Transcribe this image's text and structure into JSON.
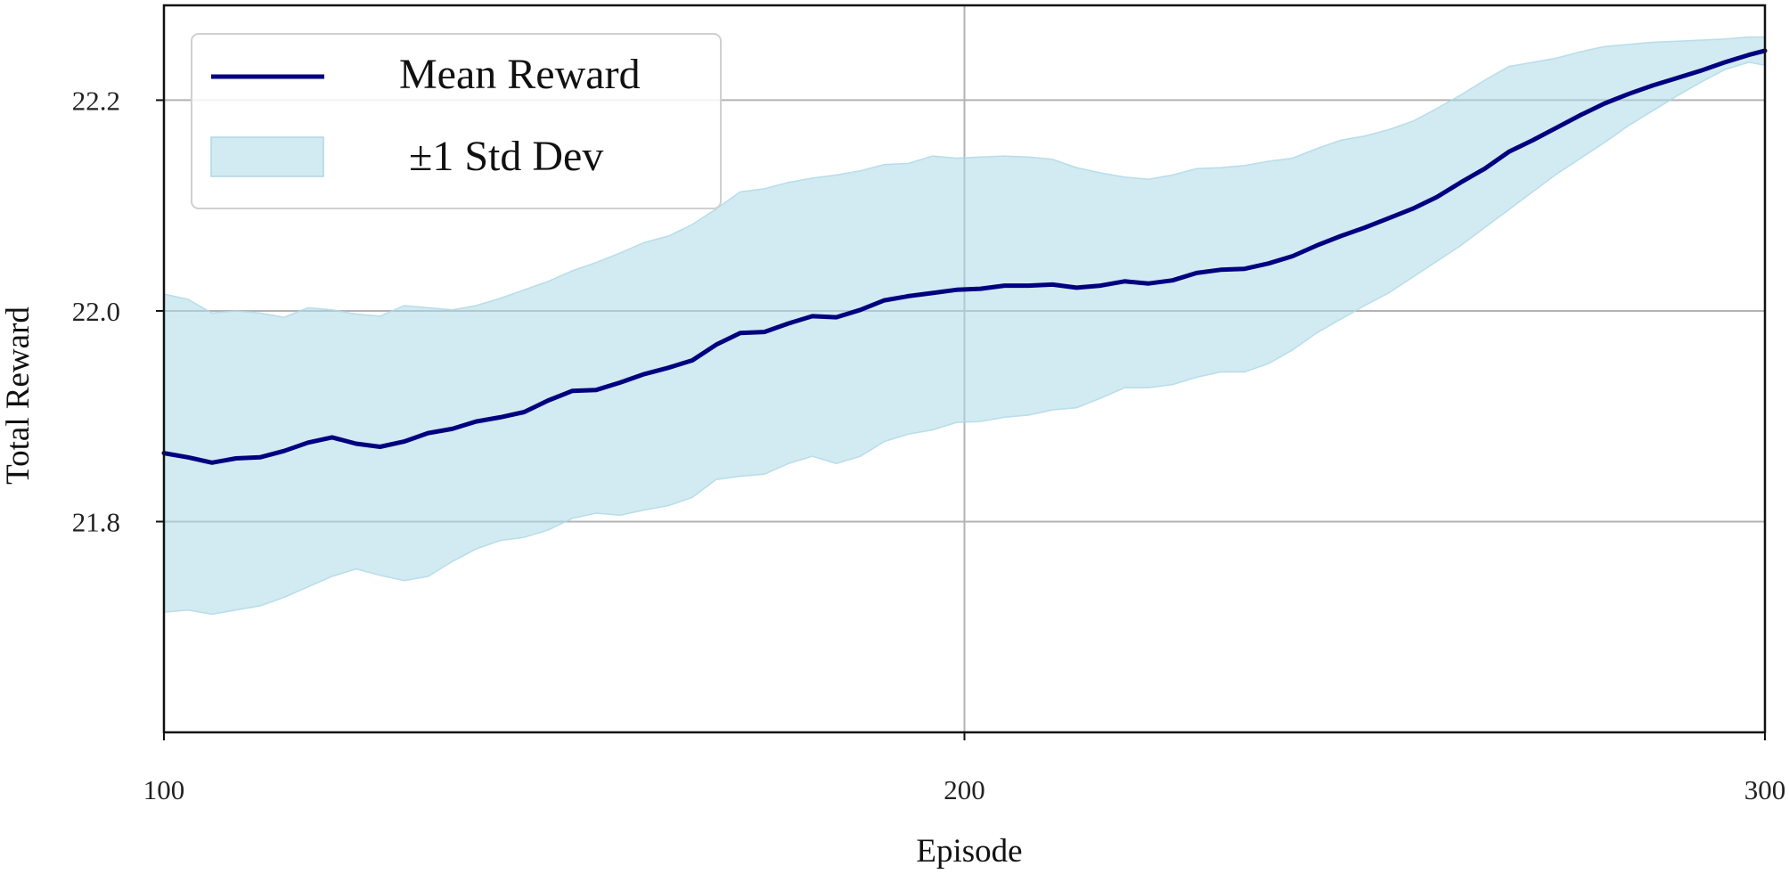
{
  "chart_data": {
    "type": "line",
    "title": "",
    "xlabel": "Episode",
    "ylabel": "Total Reward",
    "xlim": [
      100,
      300
    ],
    "ylim": [
      21.6,
      22.29
    ],
    "xticks": [
      100,
      200,
      300
    ],
    "xtick_labels": [
      "100",
      "200",
      "300"
    ],
    "yticks": [
      21.8,
      22.0,
      22.2
    ],
    "ytick_labels": [
      "21.8",
      "22.0",
      "22.2"
    ],
    "grid": true,
    "legend_position": "top-left",
    "colors": {
      "line": "#000080",
      "band": "#add8e6"
    },
    "legend": [
      {
        "label": "Mean Reward",
        "kind": "line"
      },
      {
        "label": "±1 Std Dev",
        "kind": "band"
      }
    ],
    "series": [
      {
        "name": "Mean Reward",
        "x": [
          100,
          103,
          106,
          109,
          112,
          115,
          118,
          121,
          124,
          127,
          130,
          133,
          136,
          139,
          142,
          145,
          148,
          151,
          154,
          157,
          160,
          163,
          166,
          169,
          172,
          175,
          178,
          181,
          184,
          187,
          190,
          193,
          196,
          199,
          202,
          205,
          208,
          211,
          214,
          217,
          220,
          223,
          226,
          229,
          232,
          235,
          238,
          241,
          244,
          247,
          250,
          253,
          256,
          259,
          262,
          265,
          268,
          271,
          274,
          277,
          280,
          283,
          286,
          289,
          292,
          295,
          298,
          300
        ],
        "values": [
          21.865,
          21.861,
          21.856,
          21.86,
          21.861,
          21.867,
          21.875,
          21.88,
          21.874,
          21.871,
          21.876,
          21.884,
          21.888,
          21.895,
          21.899,
          21.904,
          21.915,
          21.924,
          21.925,
          21.932,
          21.94,
          21.946,
          21.953,
          21.968,
          21.979,
          21.98,
          21.988,
          21.995,
          21.994,
          22.001,
          22.01,
          22.014,
          22.017,
          22.02,
          22.021,
          22.024,
          22.024,
          22.025,
          22.022,
          22.024,
          22.028,
          22.026,
          22.029,
          22.036,
          22.039,
          22.04,
          22.045,
          22.052,
          22.062,
          22.071,
          22.079,
          22.088,
          22.097,
          22.108,
          22.122,
          22.135,
          22.151,
          22.162,
          22.174,
          22.186,
          22.197,
          22.206,
          22.214,
          22.221,
          22.228,
          22.236,
          22.243,
          22.247
        ]
      }
    ],
    "band": {
      "name": "±1 Std Dev",
      "x": [
        100,
        103,
        106,
        109,
        112,
        115,
        118,
        121,
        124,
        127,
        130,
        133,
        136,
        139,
        142,
        145,
        148,
        151,
        154,
        157,
        160,
        163,
        166,
        169,
        172,
        175,
        178,
        181,
        184,
        187,
        190,
        193,
        196,
        199,
        202,
        205,
        208,
        211,
        214,
        217,
        220,
        223,
        226,
        229,
        232,
        235,
        238,
        241,
        244,
        247,
        250,
        253,
        256,
        259,
        262,
        265,
        268,
        271,
        274,
        277,
        280,
        283,
        286,
        289,
        292,
        295,
        298,
        300
      ],
      "upper": [
        22.016,
        22.011,
        21.998,
        22.0,
        21.998,
        21.994,
        22.003,
        22.001,
        21.997,
        21.995,
        22.005,
        22.003,
        22.001,
        22.005,
        22.012,
        22.02,
        22.028,
        22.038,
        22.046,
        22.055,
        22.065,
        22.071,
        22.082,
        22.097,
        22.113,
        22.116,
        22.122,
        22.126,
        22.129,
        22.133,
        22.139,
        22.14,
        22.147,
        22.145,
        22.146,
        22.147,
        22.146,
        22.144,
        22.136,
        22.131,
        22.127,
        22.125,
        22.129,
        22.135,
        22.136,
        22.138,
        22.142,
        22.145,
        22.154,
        22.162,
        22.166,
        22.172,
        22.18,
        22.192,
        22.205,
        22.219,
        22.232,
        22.236,
        22.24,
        22.246,
        22.251,
        22.253,
        22.255,
        22.256,
        22.257,
        22.258,
        22.26,
        22.26
      ],
      "lower": [
        21.714,
        21.716,
        21.712,
        21.716,
        21.72,
        21.728,
        21.738,
        21.748,
        21.755,
        21.749,
        21.744,
        21.748,
        21.762,
        21.774,
        21.782,
        21.785,
        21.792,
        21.803,
        21.808,
        21.806,
        21.811,
        21.815,
        21.823,
        21.84,
        21.843,
        21.845,
        21.855,
        21.862,
        21.855,
        21.862,
        21.876,
        21.883,
        21.887,
        21.894,
        21.895,
        21.899,
        21.901,
        21.906,
        21.908,
        21.917,
        21.927,
        21.927,
        21.93,
        21.937,
        21.942,
        21.942,
        21.95,
        21.963,
        21.979,
        21.992,
        22.005,
        22.017,
        22.032,
        22.047,
        22.062,
        22.079,
        22.096,
        22.113,
        22.13,
        22.145,
        22.16,
        22.176,
        22.19,
        22.204,
        22.217,
        22.229,
        22.236,
        22.233
      ]
    }
  }
}
